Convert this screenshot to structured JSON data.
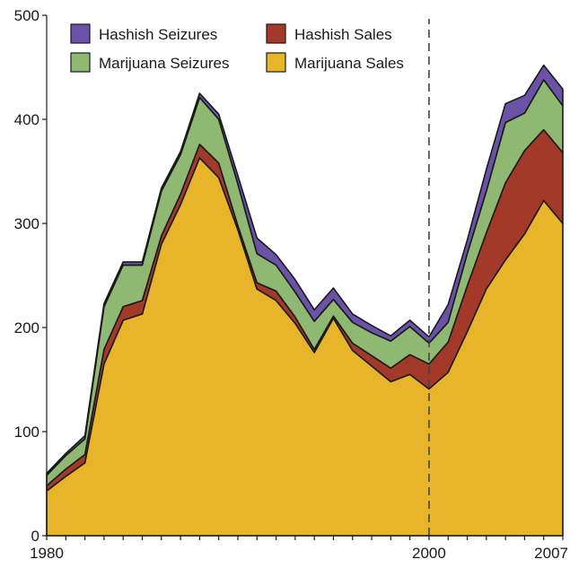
{
  "chart_data": {
    "type": "area",
    "stacked": true,
    "title": "",
    "xlabel": "",
    "ylabel": "",
    "x": [
      1980,
      1981,
      1982,
      1983,
      1984,
      1985,
      1986,
      1987,
      1988,
      1989,
      1990,
      1991,
      1992,
      1993,
      1994,
      1995,
      1996,
      1997,
      1998,
      1999,
      2000,
      2001,
      2002,
      2003,
      2004,
      2005,
      2006,
      2007
    ],
    "series": [
      {
        "name": "Marijuana Sales",
        "color": "#e8b42a",
        "values": [
          43,
          57,
          70,
          165,
          207,
          213,
          280,
          318,
          363,
          344,
          294,
          237,
          226,
          204,
          176,
          209,
          178,
          163,
          148,
          155,
          141,
          157,
          196,
          237,
          265,
          290,
          322,
          300
        ]
      },
      {
        "name": "Hashish Sales",
        "color": "#a33a29",
        "values": [
          5,
          7,
          8,
          14,
          13,
          13,
          8,
          10,
          13,
          14,
          4,
          6,
          9,
          6,
          3,
          2,
          7,
          10,
          13,
          19,
          24,
          29,
          44,
          54,
          74,
          80,
          68,
          68
        ]
      },
      {
        "name": "Marijuana Seizures",
        "color": "#8fb872",
        "values": [
          10,
          13,
          15,
          41,
          40,
          34,
          43,
          38,
          45,
          42,
          40,
          28,
          25,
          24,
          27,
          16,
          20,
          22,
          26,
          27,
          20,
          19,
          31,
          40,
          58,
          36,
          48,
          45
        ]
      },
      {
        "name": "Hashish Seizures",
        "color": "#6a52a8",
        "values": [
          2,
          2,
          3,
          3,
          3,
          3,
          3,
          3,
          4,
          5,
          8,
          15,
          10,
          12,
          11,
          11,
          8,
          7,
          5,
          6,
          6,
          17,
          13,
          21,
          18,
          17,
          14,
          16
        ]
      }
    ],
    "xlim": [
      1980,
      2007
    ],
    "ylim": [
      0,
      500
    ],
    "yticks": [
      "0",
      "100",
      "200",
      "300",
      "400",
      "500"
    ],
    "xticks": [
      {
        "value": 1980,
        "label": "1980"
      },
      {
        "value": 2000,
        "label": "2000"
      },
      {
        "value": 2007,
        "label": "2007"
      }
    ],
    "reference_line_x": 2000,
    "legend": {
      "placement": "top-left",
      "entries": [
        "Hashish Seizures",
        "Hashish Sales",
        "Marijuana Seizures",
        "Marijuana Sales"
      ]
    },
    "grid": false
  }
}
